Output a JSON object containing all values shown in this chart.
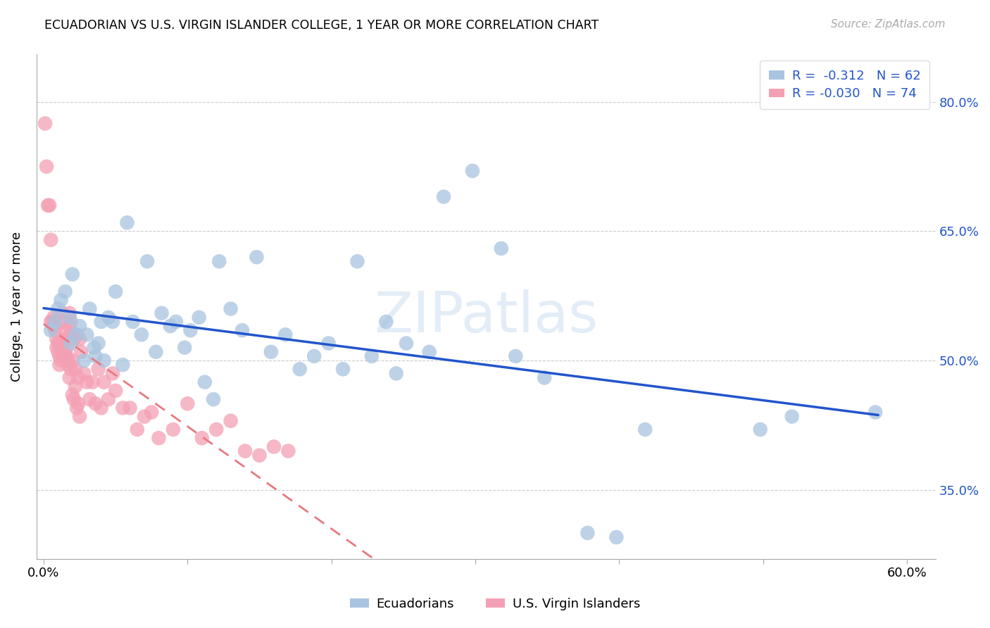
{
  "title": "ECUADORIAN VS U.S. VIRGIN ISLANDER COLLEGE, 1 YEAR OR MORE CORRELATION CHART",
  "source": "Source: ZipAtlas.com",
  "ylabel": "College, 1 year or more",
  "y_ticks": [
    0.35,
    0.5,
    0.65,
    0.8
  ],
  "y_tick_labels_right": [
    "35.0%",
    "50.0%",
    "65.0%",
    "80.0%"
  ],
  "xlim": [
    -0.005,
    0.62
  ],
  "ylim": [
    0.27,
    0.855
  ],
  "blue_R": "-0.312",
  "blue_N": "62",
  "pink_R": "-0.030",
  "pink_N": "74",
  "blue_color": "#a8c4e0",
  "pink_color": "#f4a0b4",
  "blue_line_color": "#2255cc",
  "pink_line_color": "#e87880",
  "legend_label_blue": "Ecuadorians",
  "legend_label_pink": "U.S. Virgin Islanders",
  "blue_scatter_x": [
    0.005,
    0.008,
    0.01,
    0.012,
    0.015,
    0.018,
    0.019,
    0.02,
    0.022,
    0.025,
    0.028,
    0.03,
    0.032,
    0.035,
    0.036,
    0.038,
    0.04,
    0.042,
    0.045,
    0.048,
    0.05,
    0.055,
    0.058,
    0.062,
    0.068,
    0.072,
    0.078,
    0.082,
    0.088,
    0.092,
    0.098,
    0.102,
    0.108,
    0.112,
    0.118,
    0.122,
    0.13,
    0.138,
    0.148,
    0.158,
    0.168,
    0.178,
    0.188,
    0.198,
    0.208,
    0.218,
    0.228,
    0.238,
    0.245,
    0.252,
    0.268,
    0.278,
    0.298,
    0.318,
    0.328,
    0.348,
    0.378,
    0.398,
    0.418,
    0.498,
    0.52,
    0.578
  ],
  "blue_scatter_y": [
    0.535,
    0.545,
    0.56,
    0.57,
    0.58,
    0.55,
    0.52,
    0.6,
    0.53,
    0.54,
    0.5,
    0.53,
    0.56,
    0.515,
    0.505,
    0.52,
    0.545,
    0.5,
    0.55,
    0.545,
    0.58,
    0.495,
    0.66,
    0.545,
    0.53,
    0.615,
    0.51,
    0.555,
    0.54,
    0.545,
    0.515,
    0.535,
    0.55,
    0.475,
    0.455,
    0.615,
    0.56,
    0.535,
    0.62,
    0.51,
    0.53,
    0.49,
    0.505,
    0.52,
    0.49,
    0.615,
    0.505,
    0.545,
    0.485,
    0.52,
    0.51,
    0.69,
    0.72,
    0.63,
    0.505,
    0.48,
    0.3,
    0.295,
    0.42,
    0.42,
    0.435,
    0.44
  ],
  "pink_scatter_x": [
    0.001,
    0.002,
    0.003,
    0.004,
    0.005,
    0.005,
    0.006,
    0.007,
    0.007,
    0.008,
    0.008,
    0.009,
    0.009,
    0.01,
    0.01,
    0.011,
    0.011,
    0.012,
    0.012,
    0.013,
    0.013,
    0.014,
    0.014,
    0.015,
    0.015,
    0.016,
    0.016,
    0.017,
    0.017,
    0.018,
    0.018,
    0.019,
    0.019,
    0.02,
    0.021,
    0.022,
    0.023,
    0.024,
    0.025,
    0.026,
    0.028,
    0.03,
    0.032,
    0.034,
    0.036,
    0.038,
    0.04,
    0.042,
    0.045,
    0.048,
    0.05,
    0.055,
    0.06,
    0.065,
    0.07,
    0.075,
    0.08,
    0.09,
    0.1,
    0.11,
    0.12,
    0.13,
    0.14,
    0.15,
    0.16,
    0.17,
    0.018,
    0.019,
    0.02,
    0.021,
    0.022,
    0.023,
    0.024,
    0.025
  ],
  "pink_scatter_y": [
    0.775,
    0.725,
    0.68,
    0.68,
    0.545,
    0.64,
    0.545,
    0.54,
    0.55,
    0.535,
    0.545,
    0.525,
    0.515,
    0.51,
    0.52,
    0.505,
    0.495,
    0.5,
    0.52,
    0.555,
    0.545,
    0.52,
    0.51,
    0.525,
    0.535,
    0.515,
    0.505,
    0.5,
    0.495,
    0.555,
    0.54,
    0.53,
    0.545,
    0.5,
    0.525,
    0.49,
    0.53,
    0.48,
    0.525,
    0.51,
    0.485,
    0.475,
    0.455,
    0.475,
    0.45,
    0.49,
    0.445,
    0.475,
    0.455,
    0.485,
    0.465,
    0.445,
    0.445,
    0.42,
    0.435,
    0.44,
    0.41,
    0.42,
    0.45,
    0.41,
    0.42,
    0.43,
    0.395,
    0.39,
    0.4,
    0.395,
    0.48,
    0.49,
    0.46,
    0.455,
    0.47,
    0.445,
    0.45,
    0.435
  ]
}
